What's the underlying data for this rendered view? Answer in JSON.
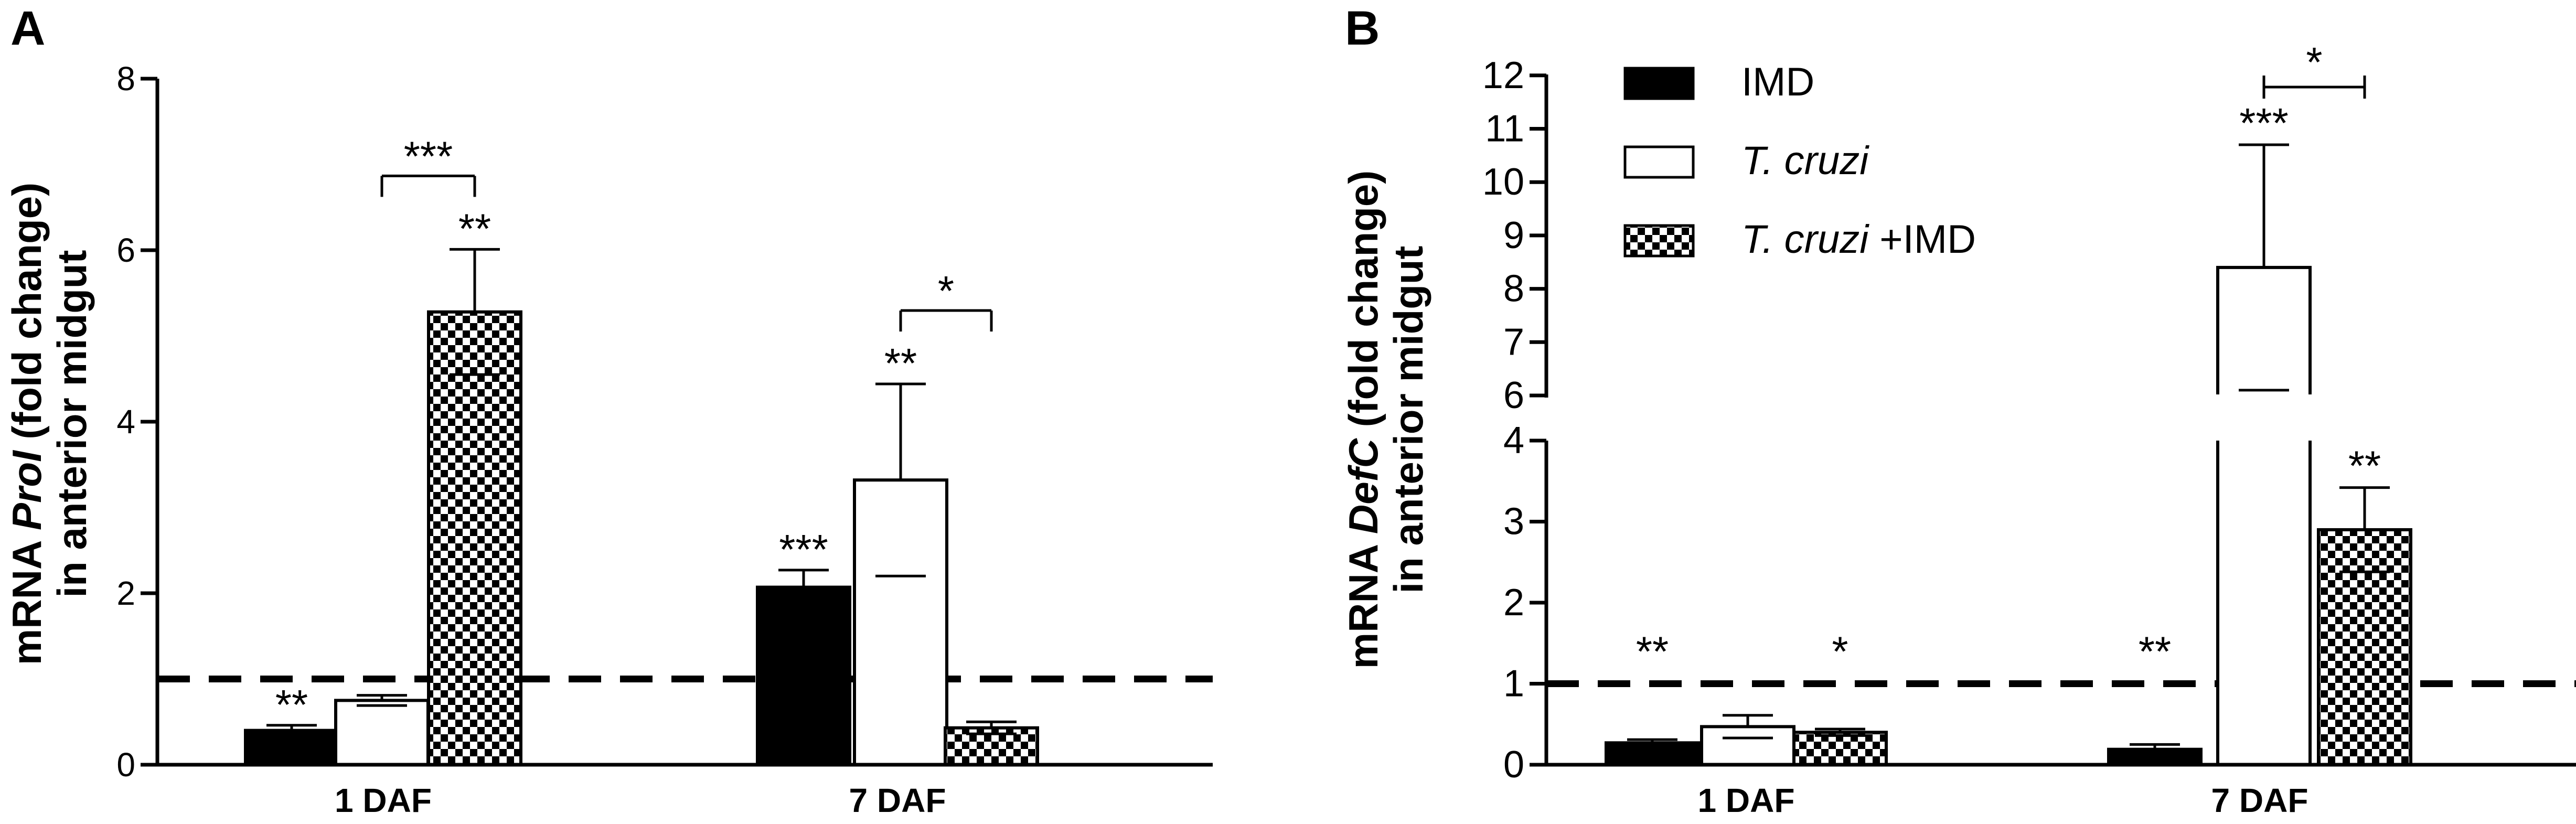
{
  "colors": {
    "imd": "#000000",
    "tcruzi": "#ffffff",
    "tcruzi_imd": "checkerboard black/white"
  },
  "legend": {
    "items": [
      {
        "key": "imd",
        "label": "IMD"
      },
      {
        "key": "tcruzi",
        "label_italic": "T. cruzi",
        "label_rest": ""
      },
      {
        "key": "tcruzi_imd",
        "label_italic": "T. cruzi",
        "label_rest": " +IMD"
      }
    ]
  },
  "chart_data": [
    {
      "panel": "A",
      "type": "bar",
      "ylabel_pre": "mRNA ",
      "ylabel_gene": "ProI",
      "ylabel_post": " (fold change)",
      "ylabel_line2": "in anterior midgut",
      "categories": [
        "1 DAF",
        "7 DAF"
      ],
      "ylim": [
        0,
        8
      ],
      "yticks": [
        "0",
        "2",
        "4",
        "6",
        "8"
      ],
      "reference_line": 1,
      "series": [
        {
          "name": "IMD",
          "values": [
            0.4,
            2.07
          ],
          "errors": [
            0.06,
            0.2
          ],
          "significance": [
            "**",
            "***"
          ]
        },
        {
          "name": "T. cruzi",
          "values": [
            0.75,
            3.32
          ],
          "errors": [
            0.06,
            1.12
          ],
          "significance": [
            "",
            "**"
          ]
        },
        {
          "name": "T. cruzi +IMD",
          "values": [
            5.28,
            0.43
          ],
          "errors": [
            0.73,
            0.07
          ],
          "significance": [
            "**",
            ""
          ]
        }
      ],
      "brackets": [
        {
          "category": "1 DAF",
          "from_series": 1,
          "to_series": 2,
          "label": "***"
        },
        {
          "category": "7 DAF",
          "from_series": 1,
          "to_series": 2,
          "label": "*"
        }
      ]
    },
    {
      "panel": "B",
      "type": "bar",
      "ylabel_pre": "mRNA ",
      "ylabel_gene": "DefC",
      "ylabel_post": " (fold change)",
      "ylabel_line2": "in anterior midgut",
      "categories": [
        "1 DAF",
        "7 DAF"
      ],
      "ylim": [
        0,
        12
      ],
      "axis_break": [
        4,
        6
      ],
      "yticks_lower": [
        "0",
        "1",
        "2",
        "3",
        "4"
      ],
      "yticks_upper": [
        "6",
        "7",
        "8",
        "9",
        "10",
        "11",
        "12"
      ],
      "reference_line": 1,
      "series": [
        {
          "name": "IMD",
          "values": [
            0.27,
            0.19
          ],
          "errors": [
            0.04,
            0.06
          ],
          "significance": [
            "**",
            "**"
          ]
        },
        {
          "name": "T. cruzi",
          "values": [
            0.47,
            8.4
          ],
          "errors": [
            0.14,
            2.3
          ],
          "significance": [
            "",
            "***"
          ]
        },
        {
          "name": "T. cruzi +IMD",
          "values": [
            0.4,
            2.9
          ],
          "errors": [
            0.04,
            0.52
          ],
          "significance": [
            "*",
            "**"
          ]
        }
      ],
      "brackets": [
        {
          "category": "7 DAF",
          "from_series": 1,
          "to_series": 2,
          "label": "*"
        }
      ]
    }
  ]
}
